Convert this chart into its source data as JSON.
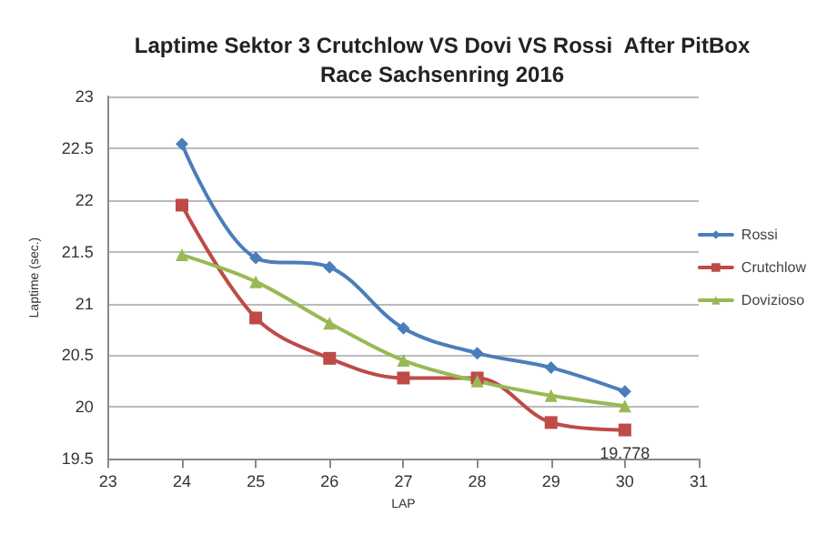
{
  "chart_data": {
    "type": "line",
    "title": "Laptime Sektor 3 Crutchlow VS Dovi VS Rossi  After PitBox\nRace Sachsenring 2016",
    "xlabel": "LAP",
    "ylabel": "Laptime (sec.)",
    "x": [
      24,
      25,
      26,
      27,
      28,
      29,
      30
    ],
    "series": [
      {
        "name": "Rossi",
        "color": "#4a7ebb",
        "marker": "diamond",
        "values": [
          22.54,
          21.44,
          21.35,
          20.76,
          20.52,
          20.38,
          20.15
        ]
      },
      {
        "name": "Crutchlow",
        "color": "#be4b48",
        "marker": "square",
        "values": [
          21.95,
          20.86,
          20.47,
          20.28,
          20.28,
          19.85,
          19.778
        ]
      },
      {
        "name": "Dovizioso",
        "color": "#98b954",
        "marker": "triangle",
        "values": [
          21.47,
          21.21,
          20.81,
          20.45,
          20.25,
          20.11,
          20.01
        ]
      }
    ],
    "annotations": [
      {
        "text": "19.778",
        "x": 30,
        "y": 19.778
      }
    ],
    "xlim": [
      23,
      31
    ],
    "xticks": [
      23,
      24,
      25,
      26,
      27,
      28,
      29,
      30,
      31
    ],
    "ylim": [
      19.5,
      23
    ],
    "yticks": [
      19.5,
      20,
      20.5,
      21,
      21.5,
      22,
      22.5,
      23
    ],
    "grid": "y",
    "legend": "right",
    "line_style": "solid"
  }
}
